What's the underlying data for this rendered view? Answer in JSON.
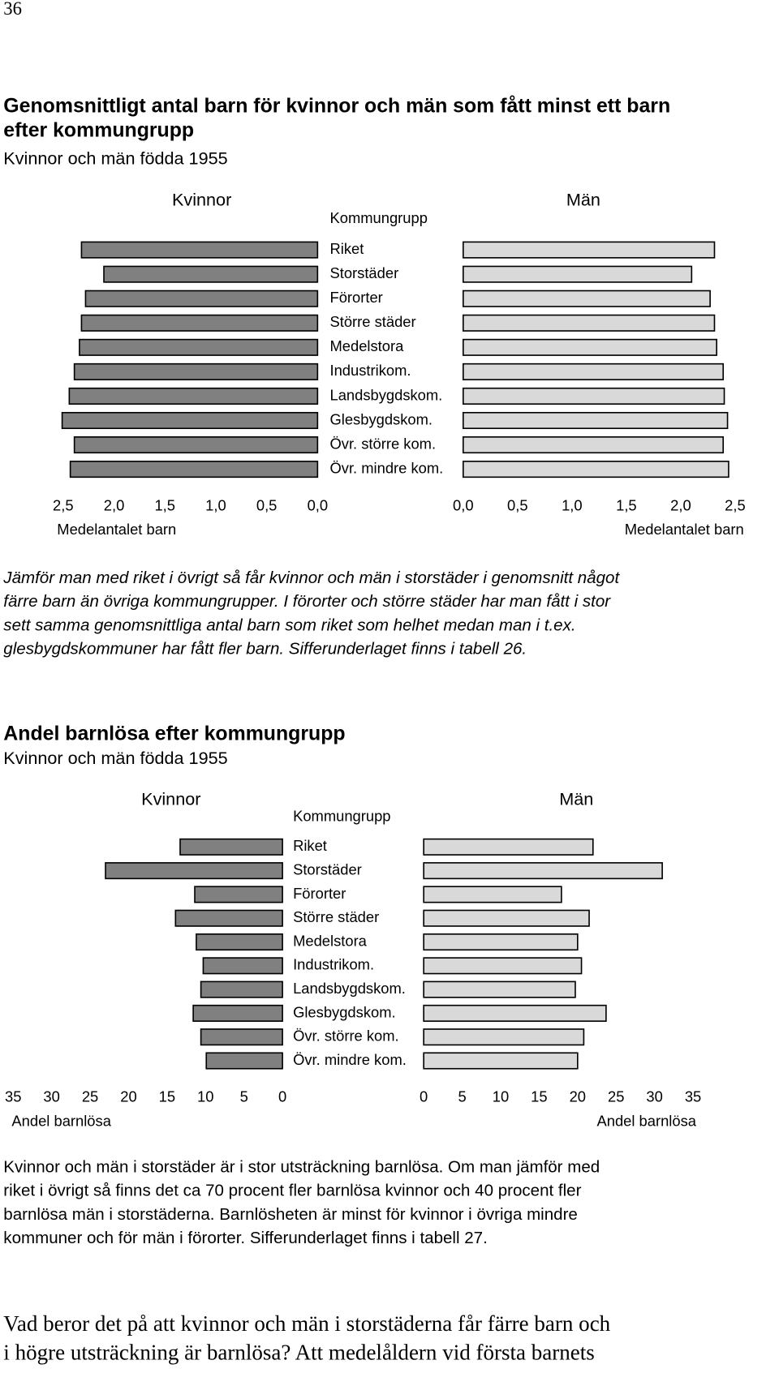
{
  "page_number": "36",
  "chart_data": [
    {
      "type": "bar",
      "title": [
        "Genomsnittligt antal barn för kvinnor och män som fått minst ett barn",
        "efter kommungrupp"
      ],
      "subtitle": "Kvinnor och män födda 1955",
      "category_header": "Kommungrupp",
      "categories": [
        "Riket",
        "Storstäder",
        "Förorter",
        "Större städer",
        "Medelstora",
        "Industrikom.",
        "Landsbygdskom.",
        "Glesbygdskom.",
        "Övr. större kom.",
        "Övr. mindre kom."
      ],
      "series": [
        {
          "name": "Kvinnor",
          "color": "#808080",
          "values": [
            2.32,
            2.1,
            2.28,
            2.32,
            2.34,
            2.39,
            2.44,
            2.51,
            2.39,
            2.43
          ]
        },
        {
          "name": "Män",
          "color": "#d9d9d9",
          "values": [
            2.31,
            2.1,
            2.27,
            2.31,
            2.33,
            2.39,
            2.4,
            2.43,
            2.39,
            2.44
          ]
        }
      ],
      "xlabel": "Medelantalet barn",
      "xlim": [
        0,
        2.5
      ],
      "xticks": [
        {
          "value": 0,
          "label": "0,0"
        },
        {
          "value": 0.5,
          "label": "0,5"
        },
        {
          "value": 1,
          "label": "1,0"
        },
        {
          "value": 1.5,
          "label": "1,5"
        },
        {
          "value": 2,
          "label": "2,0"
        },
        {
          "value": 2.5,
          "label": "2,5"
        }
      ],
      "caption": [
        "Jämför man med riket i övrigt så får kvinnor och män i storstäder i genomsnitt något",
        "färre barn än övriga kommungrupper. I förorter och större städer har man fått i stor",
        "sett samma genomsnittliga antal barn som riket som helhet medan man i t.ex.",
        "glesbygdskommuner har fått fler barn. Sifferunderlaget finns i tabell 26."
      ]
    },
    {
      "type": "bar",
      "title": [
        "Andel barnlösa efter kommungrupp"
      ],
      "subtitle": "Kvinnor och män födda 1955",
      "category_header": "Kommungrupp",
      "categories": [
        "Riket",
        "Storstäder",
        "Förorter",
        "Större städer",
        "Medelstora",
        "Industrikom.",
        "Landsbygdskom.",
        "Glesbygdskom.",
        "Övr. större kom.",
        "Övr. mindre kom."
      ],
      "series": [
        {
          "name": "Kvinnor",
          "color": "#808080",
          "values": [
            13.3,
            23.0,
            11.4,
            13.9,
            11.2,
            10.3,
            10.6,
            11.6,
            10.6,
            9.9
          ]
        },
        {
          "name": "Män",
          "color": "#d9d9d9",
          "values": [
            22.0,
            31.0,
            17.9,
            21.5,
            20.0,
            20.5,
            19.7,
            23.7,
            20.8,
            20.0
          ]
        }
      ],
      "xlabel": "Andel barnlösa",
      "xlim": [
        0,
        35
      ],
      "xticks": [
        0,
        5,
        10,
        15,
        20,
        25,
        30,
        35
      ],
      "caption": [
        "Kvinnor och män i storstäder är i stor utsträckning barnlösa. Om man jämför med",
        "riket i övrigt så finns det ca 70 procent fler barnlösa kvinnor och 40 procent fler",
        "barnlösa män i storstäderna. Barnlösheten är minst för kvinnor i övriga mindre",
        "kommuner och för män i förorter. Sifferunderlaget finns i tabell 27."
      ]
    }
  ],
  "body_text": [
    "Vad beror det på att kvinnor och män i storstäderna får färre barn och",
    "i högre utsträckning är barnlösa? Att medelåldern vid första barnets"
  ]
}
